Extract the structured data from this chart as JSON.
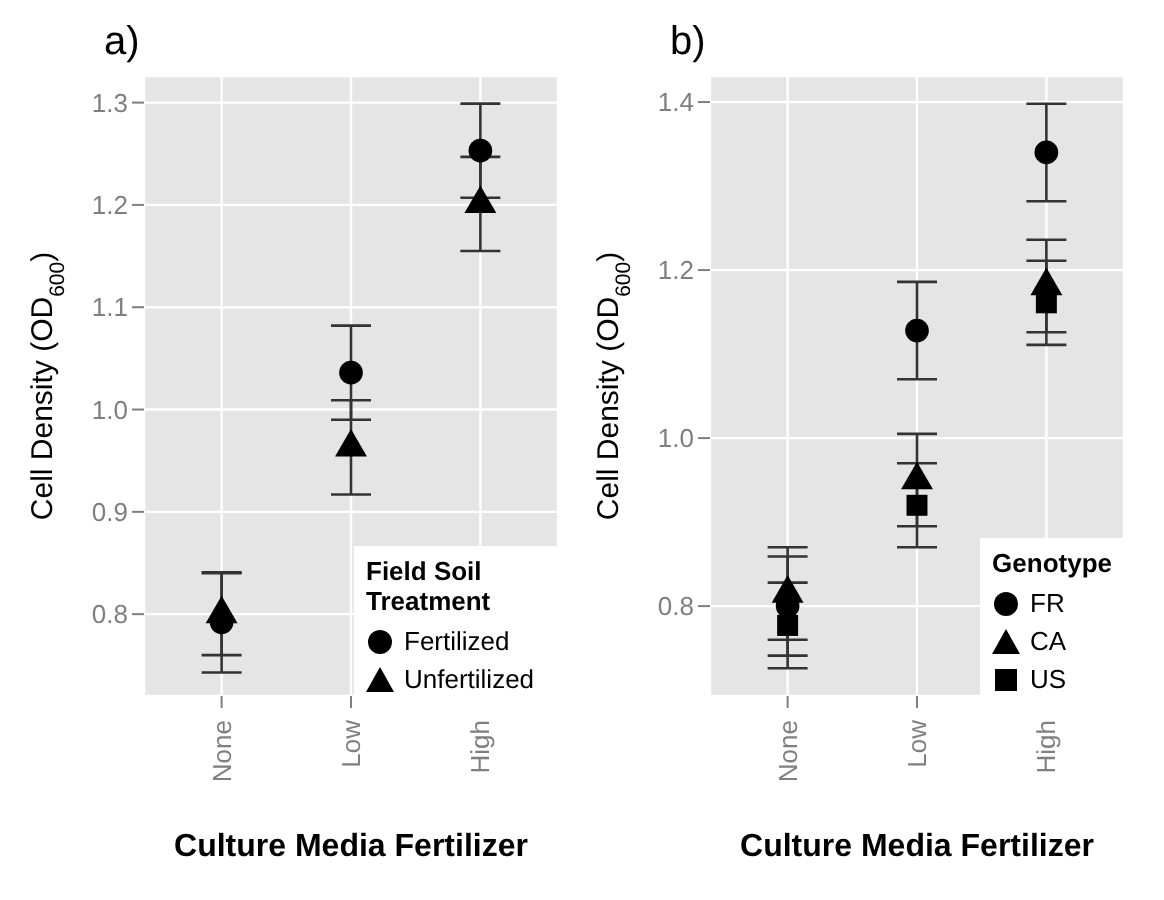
{
  "chart_data": [
    {
      "type": "scatter",
      "title": "a)",
      "xlabel": "Culture Media Fertilizer",
      "ylabel": "Cell Density (OD$_{600}$)",
      "legend_title": "Field Soil Treatment",
      "categories": [
        "None",
        "Low",
        "High"
      ],
      "series": [
        {
          "name": "Fertilized",
          "color": "#000000",
          "marker": "circle",
          "values": [
            0.792,
            1.036,
            1.253
          ],
          "errors": [
            0.049,
            0.046,
            0.046
          ]
        },
        {
          "name": "Unfertilized",
          "color": "#000000",
          "marker": "triangle",
          "values": [
            0.8,
            0.963,
            1.201
          ],
          "errors": [
            0.04,
            0.046,
            0.046
          ]
        }
      ],
      "ylim": [
        0.72,
        1.326
      ],
      "yticks": [
        0.8,
        0.9,
        {
          "value": 1,
          "label": "1.0"
        },
        1.1,
        1.2,
        1.3
      ],
      "grid": true,
      "legend": "bottom right"
    },
    {
      "type": "scatter",
      "title": "b)",
      "xlabel": "Culture Media Fertilizer",
      "ylabel": "Cell Density (OD$_{600}$)",
      "legend_title": "Genotype",
      "categories": [
        "None",
        "Low",
        "High"
      ],
      "series": [
        {
          "name": "FR",
          "color": "#000000",
          "marker": "circle",
          "values": [
            0.8,
            1.128,
            1.34
          ],
          "errors": [
            0.059,
            0.058,
            0.058
          ]
        },
        {
          "name": "CA",
          "color": "#000000",
          "marker": "triangle",
          "values": [
            0.815,
            0.95,
            1.181
          ],
          "errors": [
            0.055,
            0.055,
            0.055
          ]
        },
        {
          "name": "US",
          "color": "#000000",
          "marker": "square",
          "values": [
            0.777,
            0.92,
            1.161
          ],
          "errors": [
            0.051,
            0.05,
            0.05
          ]
        }
      ],
      "ylim": [
        0.693,
        1.431
      ],
      "yticks": [
        0.8,
        {
          "value": 1,
          "label": "1.0"
        },
        1.2,
        1.4
      ],
      "grid": true,
      "legend": "bottom right"
    }
  ]
}
